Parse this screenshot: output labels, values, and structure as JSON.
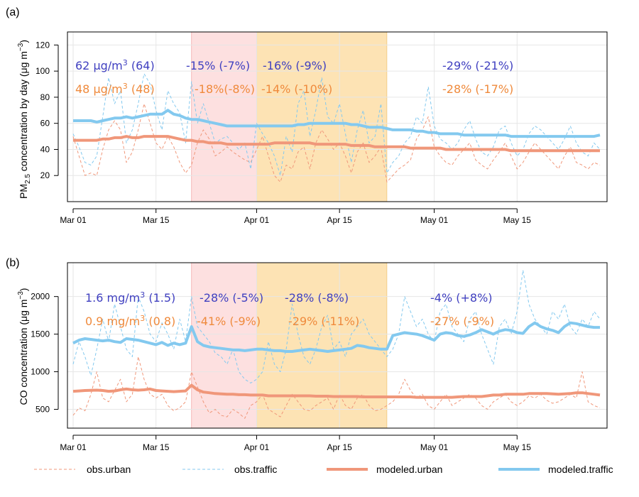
{
  "colors": {
    "blue": "#83c9ef",
    "orange": "#f0977a",
    "annot_blue": "#4040c0",
    "annot_orange": "#ef8a3c",
    "shade_pink": "#fde0e0",
    "shade_orange": "#fde3b4",
    "shade_pink_edge": "#f3a8a8",
    "shade_orange_edge": "#f0c87a"
  },
  "legend": {
    "obs_urban": "obs.urban",
    "obs_traffic": "obs.traffic",
    "modeled_urban": "modeled.urban",
    "modeled_traffic": "modeled.traffic"
  },
  "chart_data": [
    {
      "type": "line",
      "panel_label": "(a)",
      "ylabel": "PM2.5 concentration by day (μg m−3)",
      "ylim": [
        0,
        130
      ],
      "yticks": [
        20,
        40,
        60,
        80,
        100,
        120
      ],
      "x_ticks": [
        {
          "day": 0,
          "label": "Mar 01"
        },
        {
          "day": 14,
          "label": "Mar 15"
        },
        {
          "day": 31,
          "label": "Apr 01"
        },
        {
          "day": 45,
          "label": "Apr 15"
        },
        {
          "day": 61,
          "label": "May 01"
        },
        {
          "day": 75,
          "label": "May 15"
        }
      ],
      "shaded_periods": [
        {
          "from": 20,
          "to": 31,
          "style": "pink"
        },
        {
          "from": 31,
          "to": 53,
          "style": "orange"
        }
      ],
      "annotations": [
        {
          "segment": 0,
          "color": "blue",
          "base": "62 μg/m",
          "sup": "3",
          "tail": " (64)"
        },
        {
          "segment": 0,
          "color": "orange",
          "base": "48 μg/m",
          "sup": "3",
          "tail": " (48)"
        },
        {
          "segment": 1,
          "color": "blue",
          "text": "-15% (-7%)"
        },
        {
          "segment": 1,
          "color": "orange",
          "text": "-18%(-8%)"
        },
        {
          "segment": 2,
          "color": "blue",
          "text": "-16% (-9%)"
        },
        {
          "segment": 2,
          "color": "orange",
          "text": "-14% (-10%)"
        },
        {
          "segment": 3,
          "color": "blue",
          "text": "-29% (-21%)"
        },
        {
          "segment": 3,
          "color": "orange",
          "text": "-28% (-17%)"
        }
      ],
      "series": [
        {
          "name": "obs.urban",
          "style": "obs",
          "color": "orange",
          "values": [
            50,
            35,
            20,
            22,
            20,
            40,
            55,
            62,
            55,
            30,
            38,
            55,
            75,
            60,
            45,
            40,
            50,
            42,
            30,
            22,
            28,
            45,
            55,
            48,
            35,
            38,
            42,
            38,
            35,
            32,
            30,
            40,
            50,
            35,
            20,
            15,
            28,
            25,
            38,
            42,
            25,
            45,
            55,
            48,
            40,
            45,
            35,
            22,
            38,
            45,
            30,
            35,
            42,
            15,
            20,
            25,
            28,
            32,
            48,
            55,
            65,
            42,
            35,
            30,
            28,
            35,
            40,
            45,
            32,
            28,
            25,
            32,
            38,
            45,
            35,
            25,
            30,
            38,
            45,
            40,
            35,
            30,
            25,
            35,
            42,
            30,
            28,
            25,
            30,
            28
          ]
        },
        {
          "name": "obs.traffic",
          "style": "obs",
          "color": "blue",
          "values": [
            52,
            42,
            30,
            28,
            35,
            65,
            95,
            75,
            85,
            45,
            55,
            75,
            98,
            90,
            70,
            55,
            85,
            75,
            68,
            45,
            92,
            60,
            75,
            60,
            45,
            48,
            50,
            45,
            40,
            45,
            25,
            60,
            52,
            45,
            35,
            20,
            50,
            38,
            75,
            85,
            50,
            70,
            95,
            65,
            60,
            75,
            52,
            30,
            55,
            70,
            45,
            50,
            75,
            22,
            30,
            35,
            45,
            50,
            65,
            60,
            88,
            58,
            48,
            45,
            40,
            45,
            55,
            62,
            48,
            38,
            35,
            42,
            55,
            58,
            45,
            35,
            40,
            52,
            58,
            55,
            50,
            45,
            40,
            48,
            58,
            45,
            38,
            35,
            45,
            40
          ]
        },
        {
          "name": "modeled.urban",
          "style": "modeled",
          "color": "orange",
          "values": [
            47,
            47,
            47,
            47,
            47,
            48,
            48,
            49,
            49,
            50,
            49,
            49,
            50,
            50,
            50,
            50,
            50,
            49,
            48,
            47,
            47,
            46,
            46,
            45,
            45,
            45,
            44,
            44,
            44,
            44,
            44,
            44,
            44,
            44,
            45,
            45,
            45,
            45,
            45,
            45,
            45,
            44,
            44,
            44,
            44,
            44,
            44,
            43,
            43,
            43,
            43,
            42,
            42,
            42,
            42,
            42,
            42,
            41,
            41,
            41,
            41,
            41,
            41,
            40,
            40,
            40,
            40,
            40,
            40,
            40,
            40,
            40,
            40,
            40,
            39,
            39,
            39,
            39,
            39,
            39,
            39,
            39,
            39,
            39,
            39,
            39,
            39,
            39,
            39,
            39
          ]
        },
        {
          "name": "modeled.traffic",
          "style": "modeled",
          "color": "blue",
          "values": [
            62,
            62,
            62,
            62,
            61,
            62,
            63,
            64,
            64,
            65,
            64,
            65,
            66,
            67,
            67,
            67,
            70,
            67,
            66,
            64,
            63,
            63,
            62,
            61,
            60,
            59,
            58,
            58,
            58,
            58,
            58,
            58,
            58,
            58,
            58,
            58,
            58,
            58,
            59,
            59,
            60,
            60,
            60,
            60,
            60,
            60,
            60,
            59,
            59,
            58,
            57,
            57,
            57,
            56,
            55,
            55,
            55,
            55,
            54,
            54,
            53,
            53,
            52,
            52,
            52,
            52,
            51,
            51,
            51,
            51,
            51,
            51,
            51,
            51,
            50,
            50,
            50,
            50,
            50,
            50,
            50,
            50,
            50,
            50,
            50,
            50,
            50,
            50,
            50,
            51
          ]
        }
      ]
    },
    {
      "type": "line",
      "panel_label": "(b)",
      "ylabel": "CO concentration (μg m−3)",
      "ylim": [
        250,
        2450
      ],
      "yticks": [
        500,
        1000,
        1500,
        2000
      ],
      "x_ticks": [
        {
          "day": 0,
          "label": "Mar 01"
        },
        {
          "day": 14,
          "label": "Mar 15"
        },
        {
          "day": 31,
          "label": "Apr 01"
        },
        {
          "day": 45,
          "label": "Apr 15"
        },
        {
          "day": 61,
          "label": "May 01"
        },
        {
          "day": 75,
          "label": "May 15"
        }
      ],
      "shaded_periods": [
        {
          "from": 20,
          "to": 31,
          "style": "pink"
        },
        {
          "from": 31,
          "to": 53,
          "style": "orange"
        }
      ],
      "annotations": [
        {
          "segment": 0,
          "color": "blue",
          "base": "1.6 mg/m",
          "sup": "3",
          "tail": " (1.5)"
        },
        {
          "segment": 0,
          "color": "orange",
          "base": "0.9 mg/m",
          "sup": "3",
          "tail": " (0.8)"
        },
        {
          "segment": 1,
          "color": "blue",
          "text": "-28% (-5%)"
        },
        {
          "segment": 1,
          "color": "orange",
          "text": "-41% (-9%)"
        },
        {
          "segment": 2,
          "color": "blue",
          "text": "-28% (-8%)"
        },
        {
          "segment": 2,
          "color": "orange",
          "text": "-29% (-11%)"
        },
        {
          "segment": 3,
          "color": "blue",
          "text": "-4% (+8%)"
        },
        {
          "segment": 3,
          "color": "orange",
          "text": "-27% (-9%)"
        }
      ],
      "series": [
        {
          "name": "obs.urban",
          "style": "obs",
          "color": "orange",
          "values": [
            420,
            520,
            480,
            700,
            1000,
            650,
            600,
            750,
            900,
            600,
            700,
            1200,
            900,
            700,
            650,
            700,
            550,
            480,
            520,
            600,
            1000,
            800,
            600,
            450,
            500,
            420,
            400,
            500,
            450,
            380,
            550,
            600,
            700,
            500,
            450,
            400,
            550,
            700,
            600,
            500,
            480,
            550,
            600,
            650,
            500,
            700,
            550,
            500,
            650,
            700,
            550,
            480,
            500,
            550,
            600,
            700,
            900,
            750,
            650,
            700,
            550,
            500,
            600,
            700,
            550,
            600,
            650,
            700,
            650,
            550,
            500,
            600,
            650,
            700,
            600,
            550,
            600,
            680,
            650,
            700,
            620,
            580,
            600,
            650,
            700,
            650,
            1000,
            600,
            550,
            520
          ]
        },
        {
          "name": "obs.traffic",
          "style": "obs",
          "color": "blue",
          "values": [
            1100,
            1400,
            1200,
            950,
            1300,
            1700,
            1400,
            1900,
            1600,
            1300,
            1200,
            2000,
            1800,
            1500,
            1400,
            1650,
            1500,
            1300,
            1700,
            1400,
            2000,
            1600,
            1500,
            1400,
            1250,
            1200,
            1100,
            1300,
            1000,
            900,
            850,
            900,
            1000,
            1400,
            1100,
            1000,
            1300,
            1900,
            1500,
            1200,
            1100,
            1300,
            1600,
            1750,
            1300,
            1400,
            1200,
            1500,
            1600,
            1700,
            1500,
            1400,
            1300,
            1200,
            1300,
            1500,
            2000,
            1800,
            1600,
            1700,
            1500,
            1400,
            1800,
            1900,
            1600,
            1500,
            1400,
            1700,
            1800,
            1500,
            1300,
            1100,
            1600,
            1700,
            1500,
            1800,
            2350,
            1900,
            1700,
            1600,
            1500,
            1800,
            1700,
            1900,
            1600,
            1500,
            1700,
            1600,
            1800,
            1700
          ]
        },
        {
          "name": "modeled.urban",
          "style": "modeled",
          "color": "orange",
          "values": [
            740,
            745,
            750,
            752,
            755,
            750,
            740,
            745,
            760,
            770,
            760,
            755,
            760,
            770,
            750,
            745,
            740,
            735,
            740,
            745,
            820,
            760,
            730,
            720,
            710,
            705,
            700,
            700,
            695,
            695,
            690,
            690,
            690,
            680,
            680,
            680,
            680,
            680,
            680,
            680,
            680,
            675,
            675,
            675,
            670,
            670,
            670,
            670,
            670,
            665,
            665,
            665,
            665,
            665,
            665,
            665,
            665,
            665,
            660,
            660,
            660,
            660,
            660,
            660,
            660,
            665,
            670,
            670,
            670,
            670,
            680,
            690,
            690,
            700,
            700,
            700,
            700,
            710,
            710,
            710,
            710,
            705,
            700,
            705,
            710,
            720,
            720,
            710,
            700,
            690
          ]
        },
        {
          "name": "modeled.traffic",
          "style": "modeled",
          "color": "blue",
          "values": [
            1380,
            1420,
            1440,
            1430,
            1420,
            1410,
            1420,
            1400,
            1390,
            1440,
            1430,
            1420,
            1400,
            1380,
            1360,
            1390,
            1350,
            1380,
            1360,
            1380,
            1600,
            1400,
            1350,
            1330,
            1320,
            1310,
            1300,
            1290,
            1290,
            1280,
            1290,
            1300,
            1300,
            1290,
            1280,
            1280,
            1270,
            1270,
            1280,
            1290,
            1300,
            1290,
            1280,
            1270,
            1280,
            1290,
            1300,
            1310,
            1350,
            1340,
            1320,
            1310,
            1300,
            1300,
            1480,
            1500,
            1520,
            1510,
            1500,
            1480,
            1450,
            1420,
            1500,
            1520,
            1510,
            1480,
            1470,
            1490,
            1520,
            1560,
            1530,
            1500,
            1540,
            1560,
            1550,
            1520,
            1510,
            1600,
            1650,
            1600,
            1570,
            1550,
            1520,
            1600,
            1650,
            1640,
            1620,
            1600,
            1590,
            1590
          ]
        }
      ]
    }
  ]
}
